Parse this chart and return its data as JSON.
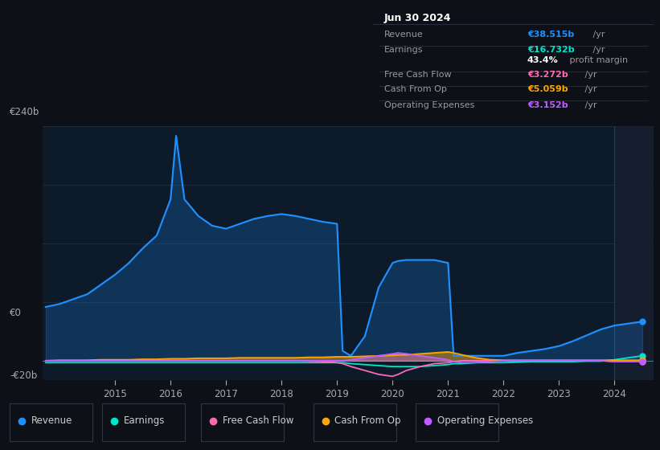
{
  "bg_color": "#0d1117",
  "plot_bg_color": "#0d1a2a",
  "grid_color": "#1e2d3d",
  "years": [
    2013.75,
    2014.0,
    2014.25,
    2014.5,
    2014.75,
    2015.0,
    2015.25,
    2015.5,
    2015.75,
    2016.0,
    2016.1,
    2016.25,
    2016.5,
    2016.75,
    2017.0,
    2017.25,
    2017.5,
    2017.75,
    2018.0,
    2018.25,
    2018.5,
    2018.75,
    2019.0,
    2019.1,
    2019.25,
    2019.5,
    2019.75,
    2020.0,
    2020.1,
    2020.25,
    2020.5,
    2020.75,
    2021.0,
    2021.1,
    2021.25,
    2021.5,
    2021.75,
    2022.0,
    2022.25,
    2022.5,
    2022.75,
    2023.0,
    2023.25,
    2023.5,
    2023.75,
    2024.0,
    2024.25,
    2024.5
  ],
  "revenue": [
    55,
    58,
    63,
    68,
    78,
    88,
    100,
    115,
    128,
    165,
    230,
    165,
    148,
    138,
    135,
    140,
    145,
    148,
    150,
    148,
    145,
    142,
    140,
    10,
    5,
    25,
    75,
    100,
    102,
    103,
    103,
    103,
    100,
    5,
    5,
    5,
    5,
    5,
    8,
    10,
    12,
    15,
    20,
    26,
    32,
    36,
    38,
    40
  ],
  "earnings": [
    -2,
    -2,
    -2,
    -2,
    -2,
    -2,
    -2,
    -2,
    -2,
    -2,
    -2,
    -2,
    -2,
    -2,
    -2,
    -2,
    -2,
    -2,
    -2,
    -2,
    -2,
    -2,
    -2,
    -2,
    -3,
    -4,
    -5,
    -6,
    -6,
    -6,
    -6,
    -5,
    -4,
    -3,
    -3,
    -2,
    -2,
    -2,
    -1.5,
    -1,
    -1,
    -1,
    -1,
    -0.5,
    -0.5,
    1,
    3,
    5
  ],
  "free_cash_flow": [
    0,
    0,
    0,
    0,
    0,
    0,
    0,
    0,
    0,
    0,
    0,
    0,
    0,
    0,
    0,
    0,
    0,
    0,
    0,
    0,
    -0.5,
    -1,
    -2,
    -3,
    -6,
    -10,
    -14,
    -16,
    -14,
    -10,
    -6,
    -3,
    -2,
    -1,
    0,
    0,
    0,
    0,
    0,
    0,
    0,
    0,
    0,
    0,
    0,
    -1,
    -1,
    -1
  ],
  "cash_from_op": [
    0,
    0.5,
    0.5,
    0.5,
    1,
    1,
    1,
    1.5,
    1.5,
    2,
    2,
    2,
    2.5,
    2.5,
    2.5,
    3,
    3,
    3,
    3,
    3,
    3.5,
    3.5,
    4,
    4,
    4,
    4.5,
    5,
    5.5,
    6,
    6,
    7,
    8,
    9,
    8,
    6,
    3,
    1,
    0.5,
    0.5,
    0.5,
    0.5,
    0.5,
    0.5,
    0.5,
    0.5,
    0.5,
    0.5,
    0.5
  ],
  "operating_expenses": [
    0,
    0,
    0,
    0,
    0,
    0,
    0,
    0,
    0,
    0,
    0,
    0,
    0,
    0,
    0,
    0,
    0,
    0,
    0,
    0,
    0,
    0,
    0,
    0,
    1,
    3,
    5,
    7,
    8,
    7,
    5,
    3,
    1,
    -1,
    -2,
    -2,
    -1,
    0,
    0,
    0,
    0,
    0,
    0,
    0,
    0,
    -1,
    -1,
    -1
  ],
  "ylim": [
    -20,
    240
  ],
  "xlim": [
    2013.7,
    2024.7
  ],
  "xticks": [
    2015,
    2016,
    2017,
    2018,
    2019,
    2020,
    2021,
    2022,
    2023,
    2024
  ],
  "hgrid_vals": [
    240,
    180,
    120,
    60,
    0,
    -20
  ],
  "colors": {
    "revenue": "#1e90ff",
    "earnings": "#00e5cc",
    "free_cash_flow": "#ff69b4",
    "cash_from_op": "#ffa500",
    "operating_expenses": "#bf5fff"
  },
  "legend": [
    {
      "label": "Revenue",
      "color": "#1e90ff"
    },
    {
      "label": "Earnings",
      "color": "#00e5cc"
    },
    {
      "label": "Free Cash Flow",
      "color": "#ff69b4"
    },
    {
      "label": "Cash From Op",
      "color": "#ffa500"
    },
    {
      "label": "Operating Expenses",
      "color": "#bf5fff"
    }
  ],
  "shade_right_x": 2024.0,
  "infobox": {
    "date": "Jun 30 2024",
    "rows": [
      {
        "label": "Revenue",
        "value": "€38.515b",
        "suffix": " /yr",
        "vcolor": "#1e90ff",
        "sep": true
      },
      {
        "label": "Earnings",
        "value": "€16.732b",
        "suffix": " /yr",
        "vcolor": "#00e5cc",
        "sep": false
      },
      {
        "label": "",
        "value": "43.4%",
        "suffix": " profit margin",
        "vcolor": "#ffffff",
        "sep": true
      },
      {
        "label": "Free Cash Flow",
        "value": "€3.272b",
        "suffix": " /yr",
        "vcolor": "#ff69b4",
        "sep": true
      },
      {
        "label": "Cash From Op",
        "value": "€5.059b",
        "suffix": " /yr",
        "vcolor": "#ffa500",
        "sep": true
      },
      {
        "label": "Operating Expenses",
        "value": "€3.152b",
        "suffix": " /yr",
        "vcolor": "#bf5fff",
        "sep": false
      }
    ]
  }
}
